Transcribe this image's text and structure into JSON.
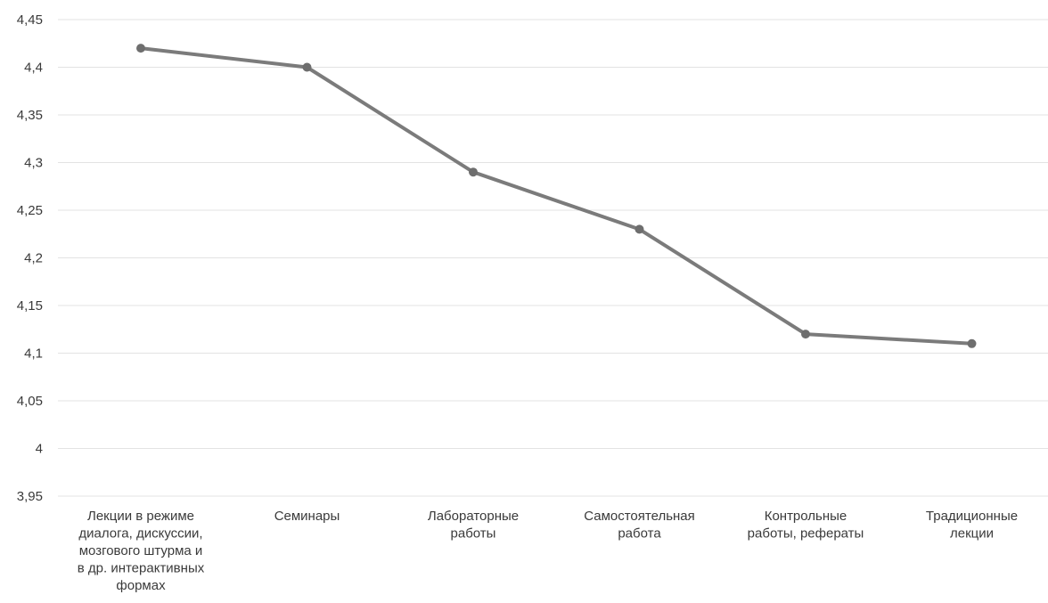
{
  "chart_data": {
    "type": "line",
    "title": "",
    "xlabel": "",
    "ylabel": "",
    "ylim": [
      3.95,
      4.45
    ],
    "yticks": [
      "4,45",
      "4,4",
      "4,35",
      "4,3",
      "4,25",
      "4,2",
      "4,15",
      "4,1",
      "4,05",
      "4",
      "3,95"
    ],
    "ytick_values": [
      4.45,
      4.4,
      4.35,
      4.3,
      4.25,
      4.2,
      4.15,
      4.1,
      4.05,
      4.0,
      3.95
    ],
    "grid": true,
    "legend": "none",
    "categories": [
      [
        "Лекции в режиме",
        "диалога, дискуссии,",
        "мозгового штурма и",
        "в др. интерактивных",
        "формах"
      ],
      [
        "Семинары"
      ],
      [
        "Лабораторные",
        "работы"
      ],
      [
        "Самостоятельная",
        "работа"
      ],
      [
        "Контрольные",
        "работы, рефераты"
      ],
      [
        "Традиционные",
        "лекции"
      ]
    ],
    "series": [
      {
        "values": [
          4.42,
          4.4,
          4.29,
          4.23,
          4.12,
          4.11
        ]
      }
    ],
    "colors": {
      "line": "#7b7b7b",
      "grid": "#e3e3e3",
      "text": "#3a3a3a"
    }
  }
}
